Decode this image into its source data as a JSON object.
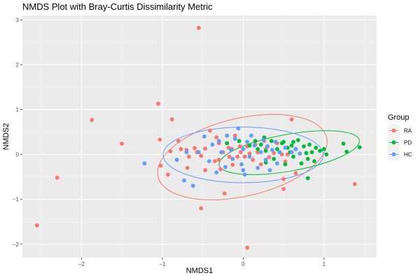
{
  "chart_data": {
    "type": "scatter",
    "title": "NMDS Plot with Bray-Curtis Dissimilarity Metric",
    "xlabel": "NMDS1",
    "ylabel": "NMDS2",
    "xlim": [
      -2.73,
      1.65
    ],
    "ylim": [
      -2.3,
      3.1
    ],
    "x_ticks": [
      -2,
      -1,
      0,
      1
    ],
    "y_ticks": [
      -2,
      -1,
      0,
      1,
      2,
      3
    ],
    "grid": true,
    "legend": {
      "title": "Group",
      "position": "right"
    },
    "series": [
      {
        "name": "RA",
        "color": "#F8766D",
        "ellipse": {
          "cx": -0.01,
          "cy": -0.06,
          "rx": 1.07,
          "ry": 0.87,
          "angle": -13
        },
        "points": [
          [
            -2.55,
            -1.58
          ],
          [
            -2.3,
            -0.52
          ],
          [
            -1.87,
            0.77
          ],
          [
            -1.5,
            0.24
          ],
          [
            -1.05,
            1.13
          ],
          [
            -1.03,
            0.33
          ],
          [
            -1.02,
            -0.25
          ],
          [
            -0.93,
            -0.45
          ],
          [
            -0.9,
            0.07
          ],
          [
            -0.88,
            0.78
          ],
          [
            -0.8,
            0.3
          ],
          [
            -0.77,
            0.12
          ],
          [
            -0.7,
            0.1
          ],
          [
            -0.67,
            -0.05
          ],
          [
            -0.69,
            -0.3
          ],
          [
            -0.6,
            0.14
          ],
          [
            -0.57,
            0.05
          ],
          [
            -0.52,
            -0.03
          ],
          [
            -0.47,
            0.13
          ],
          [
            -0.47,
            -0.35
          ],
          [
            -0.41,
            0.53
          ],
          [
            -0.33,
            0.38
          ],
          [
            -0.3,
            0.25
          ],
          [
            -0.3,
            -0.12
          ],
          [
            -0.28,
            -0.33
          ],
          [
            -0.25,
            0.05
          ],
          [
            -0.2,
            0.25
          ],
          [
            -0.17,
            -0.05
          ],
          [
            -0.14,
            0.12
          ],
          [
            -0.13,
            -0.23
          ],
          [
            -0.1,
            0.42
          ],
          [
            -0.07,
            -0.05
          ],
          [
            -0.04,
            0.18
          ],
          [
            -0.03,
            0.05
          ],
          [
            0.02,
            -0.05
          ],
          [
            0.05,
            0.18
          ],
          [
            0.08,
            0.02
          ],
          [
            0.12,
            -0.12
          ],
          [
            0.15,
            0.22
          ],
          [
            0.18,
            0.05
          ],
          [
            0.22,
            -0.22
          ],
          [
            0.28,
            0.12
          ],
          [
            0.32,
            -0.06
          ],
          [
            0.38,
            0.03
          ],
          [
            0.42,
            0.25
          ],
          [
            0.48,
            0.0
          ],
          [
            0.52,
            -0.16
          ],
          [
            0.55,
            0.0
          ],
          [
            0.6,
            0.78
          ],
          [
            0.65,
            -0.42
          ],
          [
            -0.55,
            2.82
          ],
          [
            -0.52,
            -1.2
          ],
          [
            -0.23,
            -0.87
          ],
          [
            0.05,
            -2.08
          ],
          [
            0.5,
            -0.77
          ],
          [
            0.5,
            -0.55
          ],
          [
            1.38,
            -0.66
          ],
          [
            -0.18,
            0.15
          ],
          [
            -0.35,
            -0.15
          ],
          [
            0.26,
            0.3
          ]
        ]
      },
      {
        "name": "PD",
        "color": "#00BA38",
        "ellipse": {
          "cx": 0.57,
          "cy": 0.04,
          "rx": 0.88,
          "ry": 0.41,
          "angle": -10
        },
        "points": [
          [
            -0.2,
            0.25
          ],
          [
            -0.05,
            0.3
          ],
          [
            0.08,
            0.2
          ],
          [
            0.15,
            0.3
          ],
          [
            0.18,
            0.12
          ],
          [
            0.22,
            0.22
          ],
          [
            0.26,
            0.38
          ],
          [
            0.28,
            0.08
          ],
          [
            0.3,
            0.18
          ],
          [
            0.35,
            0.3
          ],
          [
            0.38,
            -0.1
          ],
          [
            0.42,
            0.12
          ],
          [
            0.45,
            0.05
          ],
          [
            0.48,
            0.25
          ],
          [
            0.5,
            0.28
          ],
          [
            0.52,
            -0.22
          ],
          [
            0.55,
            0.15
          ],
          [
            0.58,
            0.05
          ],
          [
            0.6,
            0.2
          ],
          [
            0.62,
            -0.05
          ],
          [
            0.65,
            0.12
          ],
          [
            0.68,
            0.32
          ],
          [
            0.7,
            0.02
          ],
          [
            0.72,
            -0.2
          ],
          [
            0.75,
            0.18
          ],
          [
            0.78,
            0.03
          ],
          [
            0.8,
            -0.1
          ],
          [
            0.82,
            0.22
          ],
          [
            0.85,
            0.05
          ],
          [
            0.88,
            -0.15
          ],
          [
            0.9,
            0.15
          ],
          [
            0.95,
            0.08
          ],
          [
            1.0,
            0.12
          ],
          [
            1.03,
            0.0
          ],
          [
            0.8,
            -0.53
          ],
          [
            1.24,
            0.24
          ],
          [
            1.28,
            0.06
          ],
          [
            1.44,
            0.16
          ],
          [
            0.62,
            0.28
          ],
          [
            0.28,
            -0.18
          ]
        ]
      },
      {
        "name": "HC",
        "color": "#619CFF",
        "ellipse": {
          "cx": 0.0,
          "cy": -0.01,
          "rx": 0.99,
          "ry": 0.62,
          "angle": 0
        },
        "points": [
          [
            -1.22,
            -0.2
          ],
          [
            -0.73,
            -0.58
          ],
          [
            -0.62,
            -0.7
          ],
          [
            -0.55,
            0.05
          ],
          [
            -0.48,
            0.4
          ],
          [
            -0.42,
            -0.15
          ],
          [
            -0.38,
            0.22
          ],
          [
            -0.33,
            -0.4
          ],
          [
            -0.3,
            0.3
          ],
          [
            -0.27,
            0.05
          ],
          [
            -0.22,
            -0.28
          ],
          [
            -0.2,
            0.42
          ],
          [
            -0.15,
            0.1
          ],
          [
            -0.13,
            -0.1
          ],
          [
            -0.1,
            0.35
          ],
          [
            -0.06,
            0.58
          ],
          [
            -0.02,
            -0.22
          ],
          [
            0.0,
            0.12
          ],
          [
            0.02,
            -0.45
          ],
          [
            0.05,
            0.28
          ],
          [
            0.08,
            -0.05
          ],
          [
            0.1,
            0.42
          ],
          [
            0.14,
            0.2
          ],
          [
            0.18,
            -0.3
          ],
          [
            0.22,
            0.05
          ],
          [
            0.25,
            0.32
          ],
          [
            0.28,
            -0.12
          ],
          [
            0.3,
            0.18
          ],
          [
            0.33,
            -0.35
          ],
          [
            0.36,
            0.1
          ],
          [
            0.4,
            0.28
          ],
          [
            0.42,
            -0.2
          ],
          [
            0.45,
            0.05
          ],
          [
            0.52,
            0.15
          ],
          [
            0.6,
            0.05
          ],
          [
            0.65,
            0.12
          ],
          [
            0.7,
            0.02
          ],
          [
            -0.7,
            0.05
          ],
          [
            -0.82,
            -0.12
          ],
          [
            0.0,
            -0.35
          ]
        ]
      }
    ]
  }
}
